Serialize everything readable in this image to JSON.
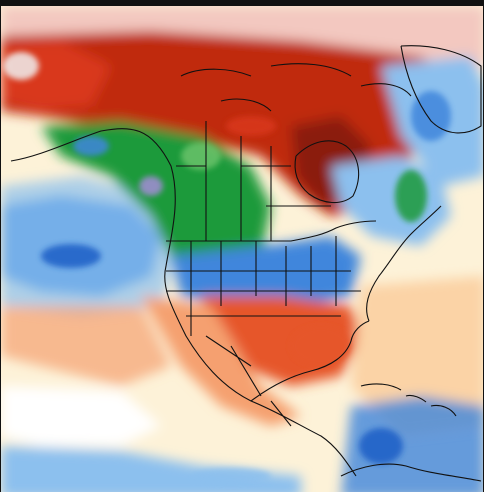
{
  "map": {
    "kind": "temperature-anomaly",
    "region": "north-america",
    "colors": {
      "extreme_warm": "#8b1a0e",
      "very_warm": "#c0290f",
      "warm": "#e6562a",
      "mild_warm": "#f5a070",
      "slight_warm": "#fbd3a6",
      "near_normal": "#fdf2d8",
      "neutral": "#ffffff",
      "slight_cool": "#d6e8f8",
      "cool": "#8cc0ee",
      "very_cool": "#3f86dc",
      "cold": "#1b9a3a",
      "very_cold": "#a58cd8",
      "border": "#111111"
    }
  }
}
